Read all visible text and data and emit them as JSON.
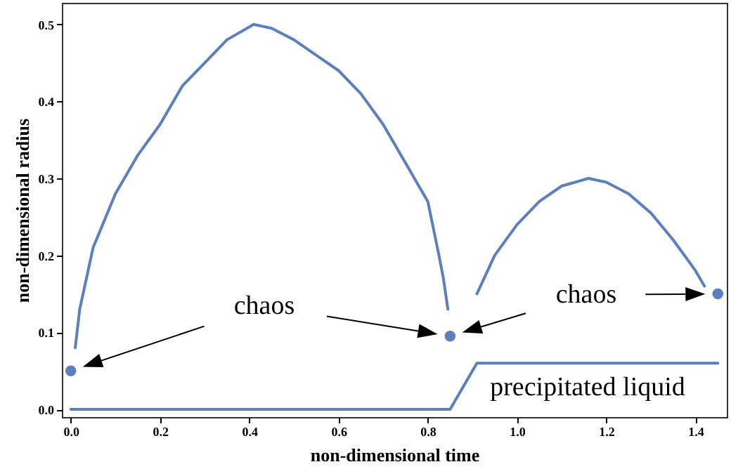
{
  "chart_data": {
    "type": "line",
    "xlabel": "non-dimensional time",
    "ylabel": "non-dimensional radius",
    "xlim": [
      -0.02,
      1.47
    ],
    "ylim": [
      -0.01,
      0.528
    ],
    "xticks": [
      {
        "value": 0,
        "label": "0.0"
      },
      0.2,
      0.4,
      0.6,
      0.8,
      {
        "value": 1,
        "label": "1.0"
      },
      1.2,
      1.4
    ],
    "yticks": [
      {
        "value": 0,
        "label": "0.0"
      },
      0.1,
      0.2,
      0.3,
      0.4,
      0.5
    ],
    "grid": false,
    "line_style": "solid",
    "annotations": [
      "chaos",
      "chaos",
      "precipitated liquid"
    ],
    "series": [
      {
        "type": "line",
        "color": "#5b7fbf",
        "x": [
          0.01,
          0.02,
          0.05,
          0.1,
          0.15,
          0.2,
          0.25,
          0.3,
          0.35,
          0.41,
          0.45,
          0.5,
          0.55,
          0.6,
          0.65,
          0.7,
          0.75,
          0.8,
          0.825,
          0.835,
          0.845
        ],
        "values": [
          0.08,
          0.13,
          0.21,
          0.28,
          0.33,
          0.37,
          0.42,
          0.45,
          0.48,
          0.5,
          0.495,
          0.48,
          0.46,
          0.44,
          0.41,
          0.37,
          0.32,
          0.27,
          0.2,
          0.17,
          0.13
        ]
      },
      {
        "type": "line",
        "color": "#5b7fbf",
        "x": [
          0.91,
          0.95,
          1.0,
          1.05,
          1.1,
          1.16,
          1.2,
          1.25,
          1.3,
          1.35,
          1.4,
          1.42
        ],
        "values": [
          0.15,
          0.2,
          0.24,
          0.27,
          0.29,
          0.3,
          0.295,
          0.28,
          0.255,
          0.22,
          0.18,
          0.16
        ]
      },
      {
        "type": "line",
        "color": "#5b7fbf",
        "x": [
          0,
          0.85,
          0.91,
          1.45
        ],
        "values": [
          0,
          0,
          0.06,
          0.06
        ]
      },
      {
        "type": "scatter",
        "color": "#5b7fbf",
        "marker": "circle",
        "x": [
          0,
          0.85,
          1.45
        ],
        "values": [
          0.05,
          0.095,
          0.15
        ]
      }
    ]
  }
}
